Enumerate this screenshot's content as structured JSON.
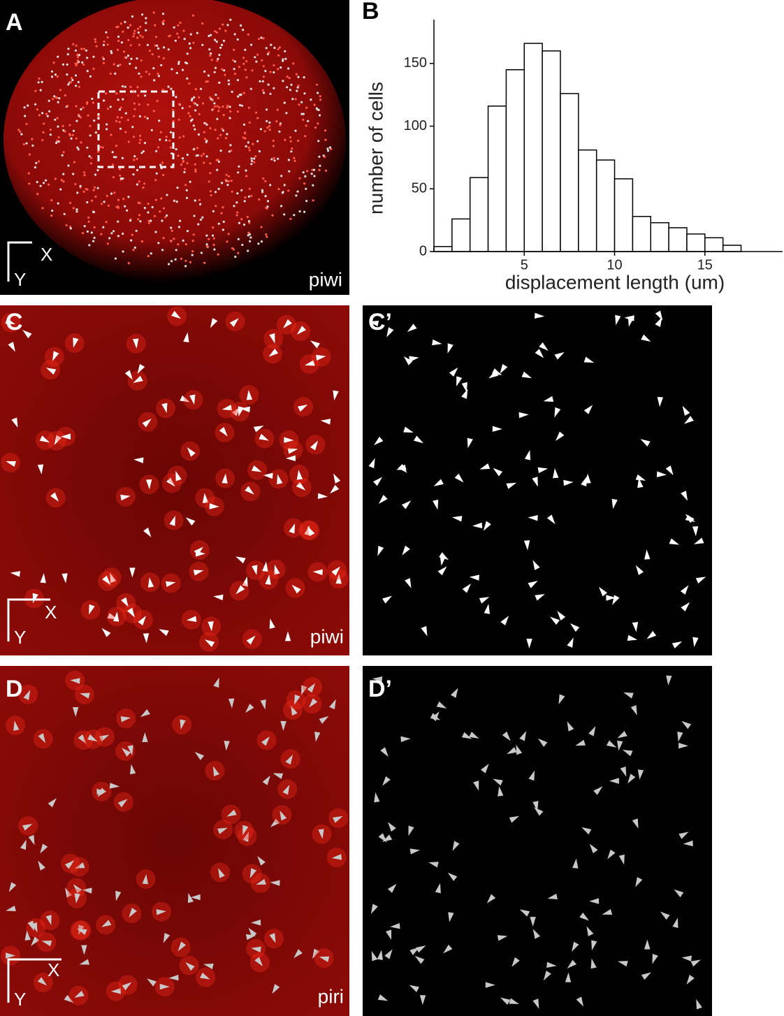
{
  "panels": [
    {
      "label": "A",
      "stain": "piwi",
      "axis_x": "X",
      "axis_y": "Y"
    },
    {
      "label": "B"
    },
    {
      "label": "C",
      "stain": "piwi",
      "axis_x": "X",
      "axis_y": "Y"
    },
    {
      "label": "C’"
    },
    {
      "label": "D",
      "stain": "piri",
      "axis_x": "X",
      "axis_y": "Y"
    },
    {
      "label": "D’"
    }
  ],
  "chart_data": {
    "type": "histogram",
    "xlabel": "displacement length (um)",
    "ylabel": "number of cells",
    "bins": [
      0,
      1,
      2,
      3,
      4,
      5,
      6,
      7,
      8,
      9,
      10,
      11,
      12,
      13,
      14,
      15,
      16,
      17
    ],
    "values": [
      4,
      26,
      59,
      116,
      145,
      166,
      160,
      126,
      81,
      73,
      58,
      28,
      23,
      19,
      14,
      11,
      5
    ],
    "color": "#ffffff",
    "edgecolor": "#000000",
    "xlim": [
      0,
      19.3
    ],
    "ylim": [
      0,
      185
    ],
    "xticks": [
      5,
      10,
      15
    ],
    "yticks": [
      0,
      50,
      100,
      150
    ]
  }
}
